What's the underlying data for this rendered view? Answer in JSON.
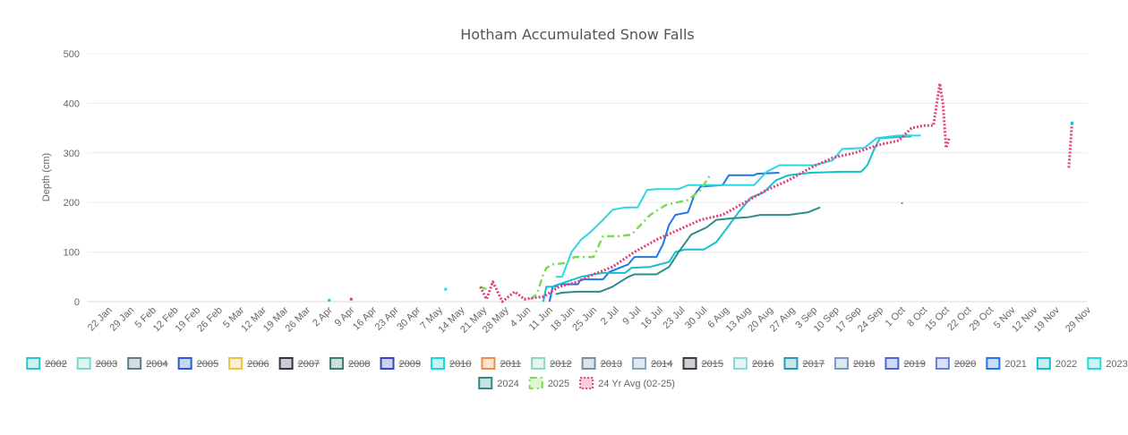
{
  "chart_data": {
    "type": "line",
    "title": "Hotham Accumulated Snow Falls",
    "ylabel": "Depth (cm)",
    "xlabel": "",
    "ylim": [
      0,
      500
    ],
    "y_ticks": [
      0,
      100,
      200,
      300,
      400,
      500
    ],
    "x_range": [
      "2025-01-15",
      "2025-11-29"
    ],
    "x_tick_labels": [
      "22 Jan",
      "29 Jan",
      "5 Feb",
      "12 Feb",
      "19 Feb",
      "26 Feb",
      "5 Mar",
      "12 Mar",
      "19 Mar",
      "26 Mar",
      "2 Apr",
      "9 Apr",
      "16 Apr",
      "23 Apr",
      "30 Apr",
      "7 May",
      "14 May",
      "21 May",
      "28 May",
      "4 Jun",
      "11 Jun",
      "18 Jun",
      "25 Jun",
      "2 Jul",
      "9 Jul",
      "16 Jul",
      "23 Jul",
      "30 Jul",
      "6 Aug",
      "13 Aug",
      "20 Aug",
      "27 Aug",
      "3 Sep",
      "10 Sep",
      "17 Sep",
      "24 Sep",
      "1 Oct",
      "8 Oct",
      "15 Oct",
      "22 Oct",
      "29 Oct",
      "5 Nov",
      "12 Nov",
      "19 Nov",
      "29 Nov"
    ],
    "x_tick_dates": [
      "2025-01-22",
      "2025-01-29",
      "2025-02-05",
      "2025-02-12",
      "2025-02-19",
      "2025-02-26",
      "2025-03-05",
      "2025-03-12",
      "2025-03-19",
      "2025-03-26",
      "2025-04-02",
      "2025-04-09",
      "2025-04-16",
      "2025-04-23",
      "2025-04-30",
      "2025-05-07",
      "2025-05-14",
      "2025-05-21",
      "2025-05-28",
      "2025-06-04",
      "2025-06-11",
      "2025-06-18",
      "2025-06-25",
      "2025-07-02",
      "2025-07-09",
      "2025-07-16",
      "2025-07-23",
      "2025-07-30",
      "2025-08-06",
      "2025-08-13",
      "2025-08-20",
      "2025-08-27",
      "2025-09-03",
      "2025-09-10",
      "2025-09-17",
      "2025-09-24",
      "2025-10-01",
      "2025-10-08",
      "2025-10-15",
      "2025-10-22",
      "2025-10-29",
      "2025-11-05",
      "2025-11-12",
      "2025-11-19",
      "2025-11-29"
    ],
    "grid": true,
    "legend_position": "bottom",
    "series": [
      {
        "name": "2002",
        "hidden": true,
        "color": "#2ec4cc",
        "points": []
      },
      {
        "name": "2003",
        "hidden": true,
        "color": "#7fd6c8",
        "points": []
      },
      {
        "name": "2004",
        "hidden": true,
        "color": "#607d8b",
        "points": []
      },
      {
        "name": "2005",
        "hidden": true,
        "color": "#2a5bd7",
        "points": []
      },
      {
        "name": "2006",
        "hidden": true,
        "color": "#e6c34a",
        "points": []
      },
      {
        "name": "2007",
        "hidden": true,
        "color": "#333344",
        "points": []
      },
      {
        "name": "2008",
        "hidden": true,
        "color": "#3a7d72",
        "points": []
      },
      {
        "name": "2009",
        "hidden": true,
        "color": "#3346c4",
        "points": []
      },
      {
        "name": "2010",
        "hidden": true,
        "color": "#19d8d8",
        "points": []
      },
      {
        "name": "2011",
        "hidden": true,
        "color": "#f28c48",
        "points": []
      },
      {
        "name": "2012",
        "hidden": true,
        "color": "#8ed6c2",
        "points": []
      },
      {
        "name": "2013",
        "hidden": true,
        "color": "#7a8ea8",
        "points": []
      },
      {
        "name": "2014",
        "hidden": true,
        "color": "#8aa4c4",
        "points": []
      },
      {
        "name": "2015",
        "hidden": true,
        "color": "#3a3a44",
        "points": []
      },
      {
        "name": "2016",
        "hidden": true,
        "color": "#8fd8d8",
        "points": []
      },
      {
        "name": "2017",
        "hidden": true,
        "color": "#2a9ab4",
        "points": []
      },
      {
        "name": "2018",
        "hidden": true,
        "color": "#7a9ac4",
        "points": []
      },
      {
        "name": "2019",
        "hidden": true,
        "color": "#4a66d8",
        "points": []
      },
      {
        "name": "2020",
        "hidden": true,
        "color": "#6a7ee0",
        "points": []
      },
      {
        "name": "2021",
        "hidden": false,
        "color": "#1f77e8",
        "dash": "",
        "points": [
          [
            "2025-06-11",
            0
          ],
          [
            "2025-06-12",
            30
          ],
          [
            "2025-06-14",
            35
          ],
          [
            "2025-06-20",
            35
          ],
          [
            "2025-06-21",
            45
          ],
          [
            "2025-06-28",
            45
          ],
          [
            "2025-06-30",
            60
          ],
          [
            "2025-07-06",
            75
          ],
          [
            "2025-07-08",
            90
          ],
          [
            "2025-07-15",
            90
          ],
          [
            "2025-07-17",
            115
          ],
          [
            "2025-07-19",
            155
          ],
          [
            "2025-07-21",
            175
          ],
          [
            "2025-07-25",
            180
          ],
          [
            "2025-07-27",
            215
          ],
          [
            "2025-07-29",
            232
          ],
          [
            "2025-08-05",
            235
          ],
          [
            "2025-08-07",
            255
          ],
          [
            "2025-08-15",
            255
          ],
          [
            "2025-08-16",
            258
          ],
          [
            "2025-08-23",
            260
          ]
        ]
      },
      {
        "name": "2022",
        "hidden": false,
        "color": "#17becf",
        "dash": "",
        "points": [
          [
            "2025-06-09",
            0
          ],
          [
            "2025-06-10",
            30
          ],
          [
            "2025-06-13",
            30
          ],
          [
            "2025-06-14",
            35
          ],
          [
            "2025-06-21",
            50
          ],
          [
            "2025-06-25",
            55
          ],
          [
            "2025-06-28",
            58
          ],
          [
            "2025-07-05",
            58
          ],
          [
            "2025-07-07",
            68
          ],
          [
            "2025-07-13",
            70
          ],
          [
            "2025-07-16",
            75
          ],
          [
            "2025-07-19",
            80
          ],
          [
            "2025-07-21",
            100
          ],
          [
            "2025-07-24",
            105
          ],
          [
            "2025-07-30",
            105
          ],
          [
            "2025-08-03",
            120
          ],
          [
            "2025-08-06",
            145
          ],
          [
            "2025-08-10",
            180
          ],
          [
            "2025-08-14",
            210
          ],
          [
            "2025-08-18",
            220
          ],
          [
            "2025-08-22",
            245
          ],
          [
            "2025-08-26",
            255
          ],
          [
            "2025-09-02",
            260
          ],
          [
            "2025-09-12",
            262
          ],
          [
            "2025-09-18",
            262
          ],
          [
            "2025-09-20",
            275
          ],
          [
            "2025-09-22",
            305
          ],
          [
            "2025-09-24",
            330
          ],
          [
            "2025-10-04",
            333
          ]
        ]
      },
      {
        "name": "2023",
        "hidden": false,
        "color": "#2ad8e0",
        "dash": "",
        "points": [
          [
            "2025-06-13",
            50
          ],
          [
            "2025-06-15",
            50
          ],
          [
            "2025-06-18",
            100
          ],
          [
            "2025-06-21",
            125
          ],
          [
            "2025-06-24",
            140
          ],
          [
            "2025-06-28",
            165
          ],
          [
            "2025-07-01",
            185
          ],
          [
            "2025-07-05",
            190
          ],
          [
            "2025-07-09",
            190
          ],
          [
            "2025-07-12",
            225
          ],
          [
            "2025-07-15",
            227
          ],
          [
            "2025-07-22",
            227
          ],
          [
            "2025-07-25",
            235
          ],
          [
            "2025-08-05",
            235
          ],
          [
            "2025-08-15",
            235
          ],
          [
            "2025-08-19",
            262
          ],
          [
            "2025-08-23",
            275
          ],
          [
            "2025-09-03",
            275
          ],
          [
            "2025-09-09",
            285
          ],
          [
            "2025-09-12",
            308
          ],
          [
            "2025-09-19",
            310
          ],
          [
            "2025-09-23",
            330
          ],
          [
            "2025-09-30",
            335
          ],
          [
            "2025-10-07",
            335
          ]
        ]
      },
      {
        "name": "2024",
        "hidden": false,
        "color": "#2e8b8b",
        "dash": "",
        "points": [
          [
            "2025-06-13",
            15
          ],
          [
            "2025-06-15",
            18
          ],
          [
            "2025-06-20",
            20
          ],
          [
            "2025-06-27",
            20
          ],
          [
            "2025-07-01",
            30
          ],
          [
            "2025-07-06",
            50
          ],
          [
            "2025-07-08",
            55
          ],
          [
            "2025-07-15",
            55
          ],
          [
            "2025-07-19",
            70
          ],
          [
            "2025-07-22",
            100
          ],
          [
            "2025-07-26",
            135
          ],
          [
            "2025-07-31",
            150
          ],
          [
            "2025-08-03",
            165
          ],
          [
            "2025-08-08",
            168
          ],
          [
            "2025-08-13",
            170
          ],
          [
            "2025-08-17",
            175
          ],
          [
            "2025-08-26",
            175
          ],
          [
            "2025-09-01",
            180
          ],
          [
            "2025-09-05",
            190
          ],
          [
            "2025-09-20",
            null
          ],
          [
            "2025-10-01",
            197
          ],
          [
            "2025-10-01",
            200
          ]
        ]
      },
      {
        "name": "2025",
        "hidden": false,
        "color": "#7cdc50",
        "dash": "8,4,2,4",
        "points": [
          [
            "2025-05-20",
            30
          ],
          [
            "2025-05-22",
            25
          ],
          [
            "2025-05-25",
            null
          ],
          [
            "2025-06-05",
            5
          ],
          [
            "2025-06-07",
            15
          ],
          [
            "2025-06-09",
            55
          ],
          [
            "2025-06-10",
            68
          ],
          [
            "2025-06-12",
            75
          ],
          [
            "2025-06-16",
            78
          ],
          [
            "2025-06-19",
            90
          ],
          [
            "2025-06-25",
            90
          ],
          [
            "2025-06-28",
            132
          ],
          [
            "2025-07-03",
            132
          ],
          [
            "2025-07-07",
            135
          ],
          [
            "2025-07-13",
            175
          ],
          [
            "2025-07-18",
            195
          ],
          [
            "2025-07-25",
            205
          ],
          [
            "2025-07-29",
            225
          ],
          [
            "2025-08-01",
            255
          ]
        ]
      },
      {
        "name": "24 Yr Avg (02-25)",
        "hidden": false,
        "color": "#e0407a",
        "dash": "2,2",
        "points": [
          [
            "2025-05-20",
            30
          ],
          [
            "2025-05-22",
            5
          ],
          [
            "2025-05-24",
            40
          ],
          [
            "2025-05-27",
            0
          ],
          [
            "2025-05-31",
            20
          ],
          [
            "2025-06-03",
            5
          ],
          [
            "2025-06-09",
            10
          ],
          [
            "2025-06-14",
            30
          ],
          [
            "2025-06-20",
            40
          ],
          [
            "2025-06-25",
            55
          ],
          [
            "2025-07-01",
            70
          ],
          [
            "2025-07-08",
            100
          ],
          [
            "2025-07-15",
            125
          ],
          [
            "2025-07-22",
            145
          ],
          [
            "2025-07-29",
            165
          ],
          [
            "2025-08-05",
            175
          ],
          [
            "2025-08-12",
            200
          ],
          [
            "2025-08-19",
            225
          ],
          [
            "2025-08-26",
            245
          ],
          [
            "2025-09-02",
            270
          ],
          [
            "2025-09-09",
            290
          ],
          [
            "2025-09-16",
            300
          ],
          [
            "2025-09-23",
            315
          ],
          [
            "2025-09-30",
            325
          ],
          [
            "2025-10-04",
            350
          ],
          [
            "2025-10-08",
            355
          ],
          [
            "2025-10-11",
            355
          ],
          [
            "2025-10-13",
            440
          ],
          [
            "2025-10-14",
            400
          ],
          [
            "2025-10-15",
            310
          ],
          [
            "2025-10-16",
            330
          ],
          [
            "2025-10-17",
            null
          ],
          [
            "2025-11-23",
            270
          ],
          [
            "2025-11-24",
            360
          ]
        ]
      }
    ],
    "stray_points": [
      {
        "name": "2002",
        "date": "2025-04-02",
        "value": 3,
        "color": "#2ec4cc"
      },
      {
        "name": "2016",
        "date": "2025-04-09",
        "value": 5,
        "color": "#e0407a"
      },
      {
        "name": "2016",
        "date": "2025-05-09",
        "value": 25,
        "color": "#2ad8e0"
      },
      {
        "name": "2016",
        "date": "2025-11-24",
        "value": 360,
        "color": "#17becf"
      }
    ]
  }
}
